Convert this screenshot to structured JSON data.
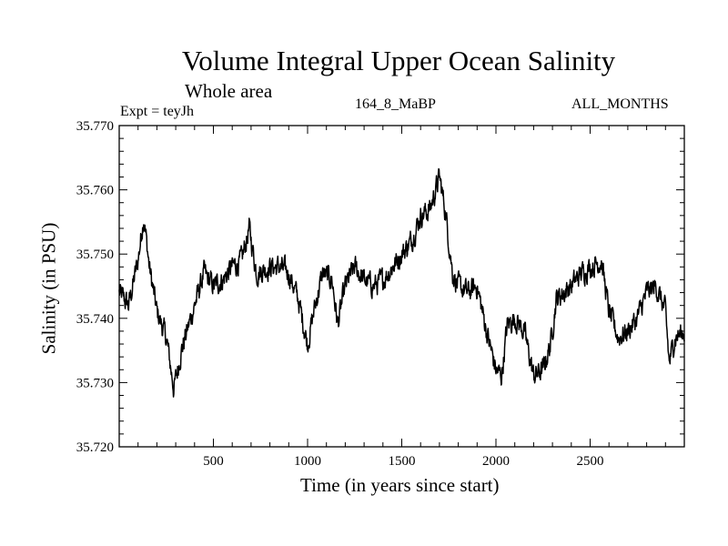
{
  "chart_data": {
    "type": "line",
    "title": "Volume Integral Upper Ocean Salinity",
    "subtitle": "Whole area",
    "annotations": {
      "experiment": "Expt = teyJh",
      "run": "164_8_MaBP",
      "months": "ALL_MONTHS"
    },
    "xlabel": "Time (in years since start)",
    "ylabel": "Salinity (in PSU)",
    "xlim": [
      0,
      3000
    ],
    "ylim": [
      35.72,
      35.77
    ],
    "x_ticks": [
      500,
      1000,
      1500,
      2000,
      2500
    ],
    "x_tick_labels": [
      "500",
      "1000",
      "1500",
      "2000",
      "2500"
    ],
    "y_ticks": [
      35.72,
      35.73,
      35.74,
      35.75,
      35.76,
      35.77
    ],
    "y_tick_labels": [
      "35.720",
      "35.730",
      "35.740",
      "35.750",
      "35.760",
      "35.770"
    ],
    "series": [
      {
        "name": "Upper ocean salinity",
        "color": "#000000",
        "x": [
          0,
          50,
          100,
          130,
          160,
          200,
          250,
          290,
          330,
          400,
          450,
          500,
          550,
          600,
          650,
          690,
          730,
          800,
          850,
          900,
          950,
          1000,
          1040,
          1080,
          1130,
          1160,
          1200,
          1250,
          1300,
          1350,
          1400,
          1450,
          1500,
          1550,
          1600,
          1650,
          1700,
          1730,
          1770,
          1800,
          1850,
          1900,
          1950,
          2000,
          2030,
          2060,
          2100,
          2150,
          2200,
          2250,
          2290,
          2320,
          2400,
          2450,
          2500,
          2560,
          2600,
          2650,
          2700,
          2750,
          2800,
          2850,
          2900,
          2920,
          2950,
          3000
        ],
        "values": [
          35.744,
          35.742,
          35.749,
          35.756,
          35.748,
          35.741,
          35.737,
          35.729,
          35.735,
          35.742,
          35.747,
          35.745,
          35.746,
          35.748,
          35.749,
          35.754,
          35.747,
          35.748,
          35.748,
          35.747,
          35.743,
          35.736,
          35.742,
          35.747,
          35.746,
          35.739,
          35.745,
          35.748,
          35.746,
          35.745,
          35.746,
          35.748,
          35.75,
          35.752,
          35.756,
          35.757,
          35.762,
          35.757,
          35.747,
          35.745,
          35.744,
          35.745,
          35.738,
          35.732,
          35.731,
          35.739,
          35.74,
          35.738,
          35.731,
          35.732,
          35.736,
          35.743,
          35.745,
          35.747,
          35.748,
          35.749,
          35.741,
          35.737,
          35.738,
          35.74,
          35.744,
          35.745,
          35.741,
          35.733,
          35.737,
          35.738
        ]
      }
    ]
  }
}
